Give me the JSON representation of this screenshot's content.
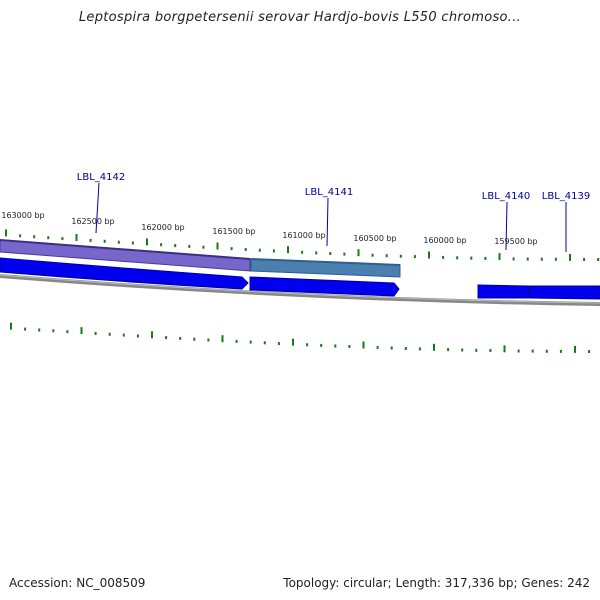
{
  "title": "Leptospira borgpetersenii serovar Hardjo-bovis L550 chromoso...",
  "footer": {
    "accession": "Accession: NC_008509",
    "summary": "Topology: circular; Length: 317,336 bp; Genes: 242"
  },
  "colors": {
    "tick": "#1a7a1a",
    "gene_strong": "#0000ee",
    "gene_purple": "#7766cc",
    "gene_steel": "#4a7fb0",
    "backbone": "#777777",
    "label": "#000099"
  },
  "ticks": [
    {
      "label": "163000 bp"
    },
    {
      "label": "162500 bp"
    },
    {
      "label": "162000 bp"
    },
    {
      "label": "161500 bp"
    },
    {
      "label": "161000 bp"
    },
    {
      "label": "160500 bp"
    },
    {
      "label": "160000 bp"
    },
    {
      "label": "159500 bp"
    }
  ],
  "genes": [
    {
      "label": "LBL_4142"
    },
    {
      "label": "LBL_4141"
    },
    {
      "label": "LBL_4140"
    },
    {
      "label": "LBL_4139"
    }
  ]
}
